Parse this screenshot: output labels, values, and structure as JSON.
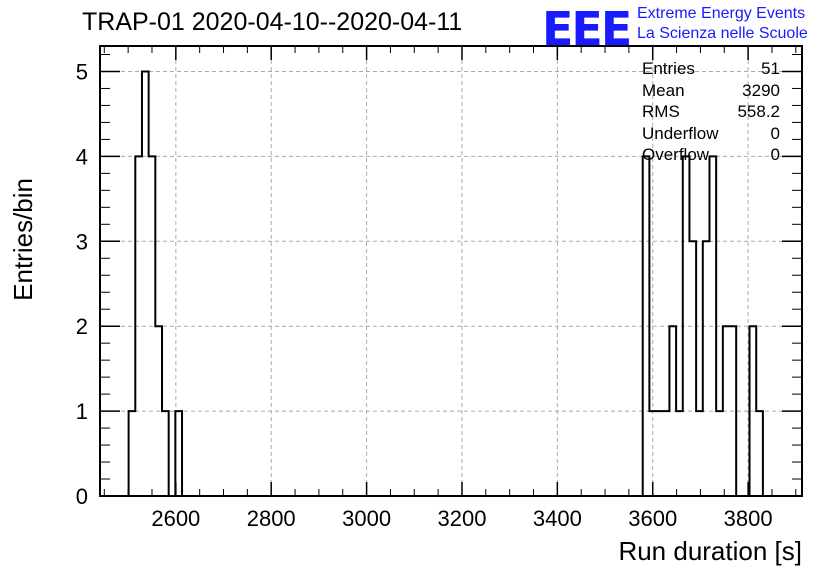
{
  "header": {
    "title": "TRAP-01 2020-04-10--2020-04-11",
    "logo_mark": "EEE",
    "logo_line1": "Extreme Energy Events",
    "logo_line2": "La Scienza nelle Scuole"
  },
  "stats": [
    {
      "label": "Entries",
      "value": "51"
    },
    {
      "label": "Mean",
      "value": "3290"
    },
    {
      "label": "RMS",
      "value": "558.2"
    },
    {
      "label": "Underflow",
      "value": "0"
    },
    {
      "label": "Overflow",
      "value": "0"
    }
  ],
  "chart_data": {
    "type": "histogram",
    "xlabel": "Run duration [s]",
    "ylabel": "Entries/bin",
    "xlim": [
      2441,
      3913
    ],
    "ylim": [
      0,
      5.3
    ],
    "grid": true,
    "legend": "top-right",
    "x_ticks": [
      2600,
      2800,
      3000,
      3200,
      3400,
      3600,
      3800
    ],
    "y_ticks": [
      0,
      1,
      2,
      3,
      4,
      5
    ],
    "bin_width": 14,
    "bins": [
      {
        "x": 2501,
        "y": 1
      },
      {
        "x": 2515,
        "y": 4
      },
      {
        "x": 2529,
        "y": 5
      },
      {
        "x": 2543,
        "y": 4
      },
      {
        "x": 2557,
        "y": 2
      },
      {
        "x": 2571,
        "y": 1
      },
      {
        "x": 2599,
        "y": 1
      },
      {
        "x": 3579,
        "y": 4
      },
      {
        "x": 3593,
        "y": 1
      },
      {
        "x": 3607,
        "y": 1
      },
      {
        "x": 3621,
        "y": 1
      },
      {
        "x": 3635,
        "y": 2
      },
      {
        "x": 3649,
        "y": 1
      },
      {
        "x": 3663,
        "y": 4
      },
      {
        "x": 3677,
        "y": 3
      },
      {
        "x": 3691,
        "y": 1
      },
      {
        "x": 3705,
        "y": 3
      },
      {
        "x": 3719,
        "y": 4
      },
      {
        "x": 3733,
        "y": 1
      },
      {
        "x": 3747,
        "y": 2
      },
      {
        "x": 3761,
        "y": 2
      },
      {
        "x": 3775,
        "y": 0
      },
      {
        "x": 3789,
        "y": 0
      },
      {
        "x": 3803,
        "y": 2
      },
      {
        "x": 3817,
        "y": 1
      }
    ]
  }
}
